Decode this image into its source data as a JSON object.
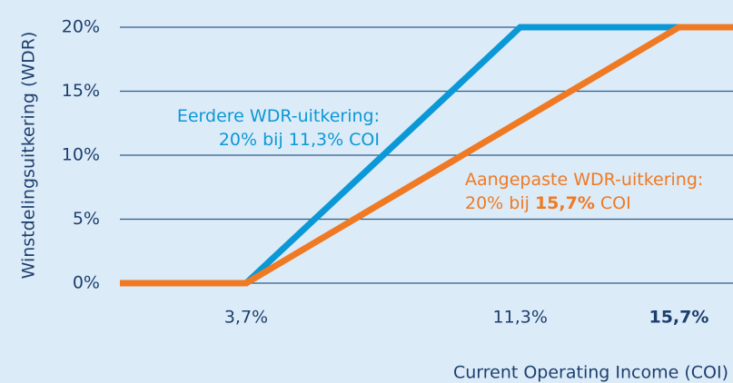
{
  "chart_data": {
    "type": "line",
    "ylabel": "Winstdelingsuitkering (WDR)",
    "xlabel": "Current Operating Income (COI)",
    "xlim": [
      0.2,
      17.2
    ],
    "ylim": [
      0,
      20
    ],
    "xticks": [
      {
        "value": 3.7,
        "label": "3,7%"
      },
      {
        "value": 11.3,
        "label": "11,3%"
      },
      {
        "value": 15.7,
        "label": "15,7%",
        "bold": true
      }
    ],
    "yticks": [
      {
        "value": 0,
        "label": "0%"
      },
      {
        "value": 5,
        "label": "5%"
      },
      {
        "value": 10,
        "label": "10%"
      },
      {
        "value": 15,
        "label": "15%"
      },
      {
        "value": 20,
        "label": "20%"
      }
    ],
    "grid": true,
    "series": [
      {
        "color": "#0b98d6",
        "x": [
          0.2,
          3.7,
          11.3,
          17.2
        ],
        "values": [
          0,
          0,
          20,
          20
        ]
      },
      {
        "color": "#ef7a23",
        "x": [
          0.2,
          3.7,
          15.7,
          17.2
        ],
        "values": [
          0,
          0,
          20,
          20
        ]
      }
    ],
    "annotations": [
      {
        "color": "#0b98d6",
        "lines": [
          [
            {
              "text": "Eerdere WDR-uitkering:"
            }
          ],
          [
            {
              "text": "20% bij 11,3% COI"
            }
          ]
        ]
      },
      {
        "color": "#ef7a23",
        "lines": [
          [
            {
              "text": "Aangepaste WDR-uitkering:"
            }
          ],
          [
            {
              "text": "20% bij "
            },
            {
              "text": "15,7%",
              "bold": true
            },
            {
              "text": " COI"
            }
          ]
        ]
      }
    ]
  }
}
